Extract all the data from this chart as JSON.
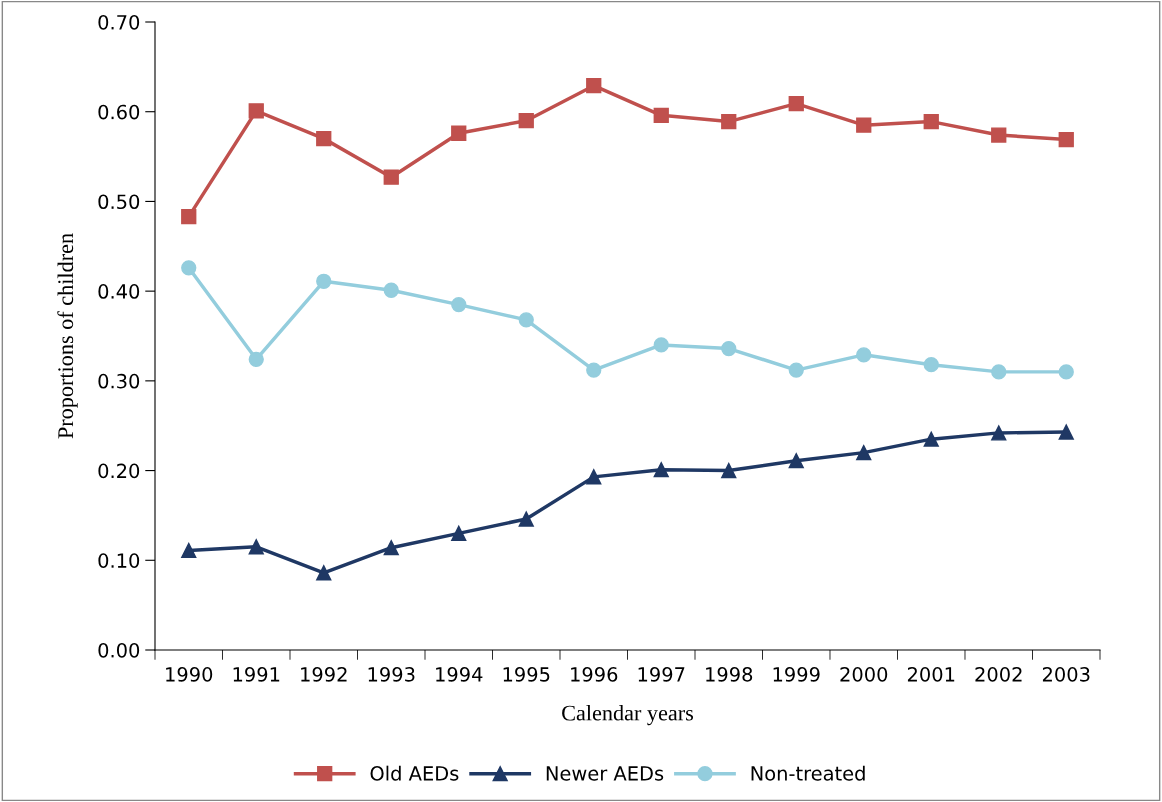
{
  "chart_data": {
    "type": "line",
    "xlabel": "Calendar years",
    "ylabel": "Proportions of children",
    "categories": [
      "1990",
      "1991",
      "1992",
      "1993",
      "1994",
      "1995",
      "1996",
      "1997",
      "1998",
      "1999",
      "2000",
      "2001",
      "2002",
      "2003"
    ],
    "series": [
      {
        "name": "Old AEDs",
        "color": "#c0504d",
        "marker": "square",
        "values": [
          0.483,
          0.601,
          0.57,
          0.527,
          0.576,
          0.59,
          0.629,
          0.596,
          0.589,
          0.609,
          0.585,
          0.589,
          0.574,
          0.569
        ]
      },
      {
        "name": "Newer AEDs",
        "color": "#1f3864",
        "marker": "triangle",
        "values": [
          0.111,
          0.115,
          0.086,
          0.114,
          0.13,
          0.146,
          0.193,
          0.201,
          0.2,
          0.211,
          0.22,
          0.235,
          0.242,
          0.243
        ]
      },
      {
        "name": "Non-treated",
        "color": "#93cddd",
        "marker": "circle",
        "values": [
          0.426,
          0.324,
          0.411,
          0.401,
          0.385,
          0.368,
          0.312,
          0.34,
          0.336,
          0.312,
          0.329,
          0.318,
          0.31,
          0.31
        ]
      }
    ],
    "ylim": [
      0,
      0.7
    ],
    "yticks": [
      {
        "value": 0,
        "label": "0.00"
      },
      {
        "value": 0.1,
        "label": "0.10"
      },
      {
        "value": 0.2,
        "label": "0.20"
      },
      {
        "value": 0.3,
        "label": "0.30"
      },
      {
        "value": 0.4,
        "label": "0.40"
      },
      {
        "value": 0.5,
        "label": "0.50"
      },
      {
        "value": 0.6,
        "label": "0.60"
      },
      {
        "value": 0.7,
        "label": "0.70"
      }
    ],
    "grid": false,
    "legend": "bottom",
    "line_style": "solid"
  }
}
